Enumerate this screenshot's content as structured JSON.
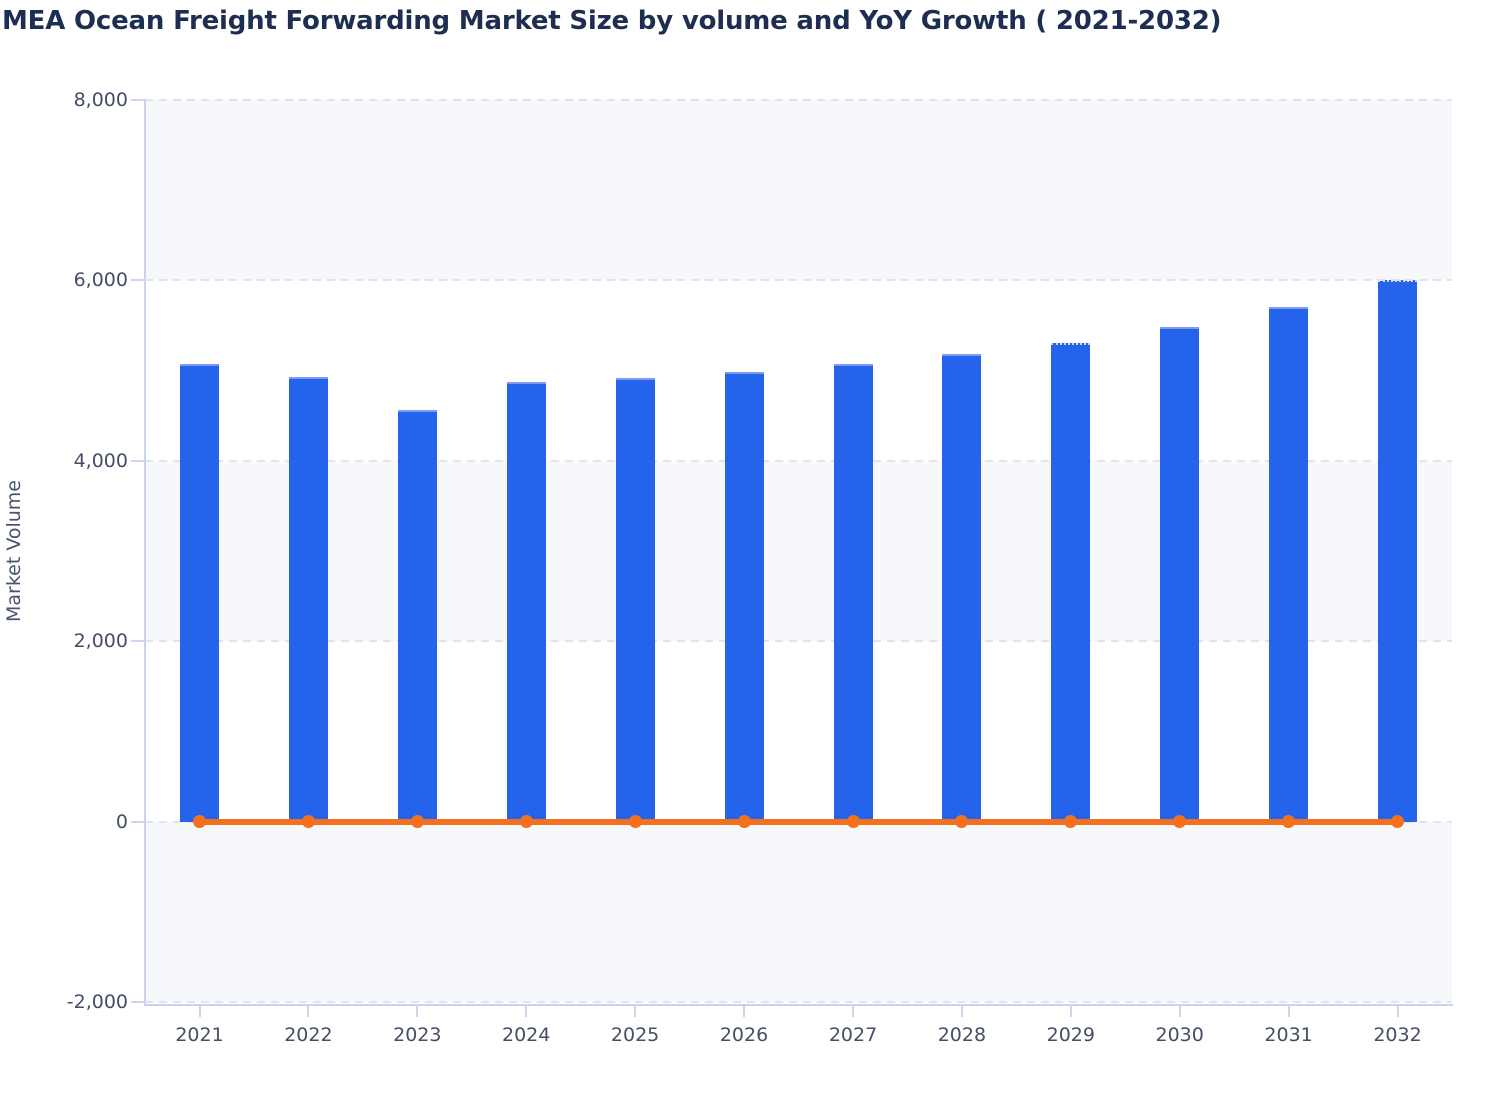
{
  "title": "MEA Ocean Freight Forwarding Market Size by volume and YoY Growth ( 2021-2032)",
  "chart_data": {
    "type": "bar",
    "title": "MEA Ocean Freight Forwarding Market Size by volume and YoY Growth ( 2021-2032)",
    "categories": [
      "2021",
      "2022",
      "2023",
      "2024",
      "2025",
      "2026",
      "2027",
      "2028",
      "2029",
      "2030",
      "2031",
      "2032"
    ],
    "series": [
      {
        "name": "Market Volume",
        "type": "bar",
        "color": "#2563eb",
        "values": [
          5070,
          4930,
          4560,
          4870,
          4920,
          4990,
          5075,
          5180,
          5310,
          5480,
          5710,
          6000
        ]
      },
      {
        "name": "YoY Growth",
        "type": "line",
        "color": "#f3711d",
        "values": [
          0,
          0,
          0,
          0,
          0,
          0,
          0,
          0,
          0,
          0,
          0,
          0
        ]
      }
    ],
    "xlabel": "",
    "ylabel": "Market Volume",
    "ylim": [
      -2000,
      8000
    ],
    "ytick_values": [
      8000,
      6000,
      4000,
      2000,
      0,
      -2000
    ],
    "ytick_labels": [
      "8,000",
      "6,000",
      "4,000",
      "2,000",
      "0",
      "-2,000"
    ],
    "grid": "horizontal-dashed",
    "plot_bands": "alternating horizontal fills every 2000 starting gray at top",
    "legend_position": "none",
    "dotted_cap_years": [
      "2029",
      "2032"
    ]
  },
  "colors": {
    "bar_fill": "#2563eb",
    "bar_top_edge": "#7e9bf1",
    "line_orange": "#f3711d",
    "title_text": "#1e2d52",
    "axis_text": "#454e66",
    "band_fill": "#f7f8fc",
    "gridline": "#e1e4ec",
    "axis_line": "#c9d2f0"
  }
}
